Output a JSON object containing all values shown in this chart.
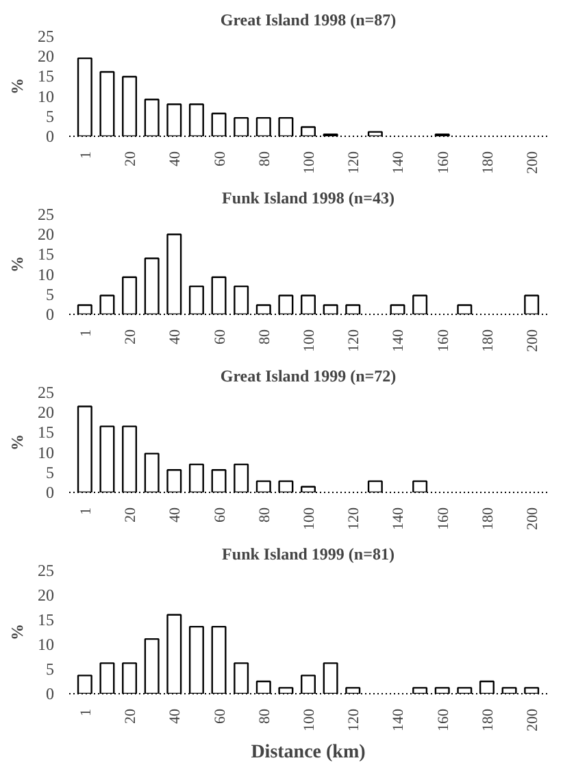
{
  "chart_data": [
    {
      "type": "bar",
      "title": "Great Island 1998 (n=87)",
      "ylabel": "%",
      "categories": [
        "1",
        null,
        "20",
        null,
        "40",
        null,
        "60",
        null,
        "80",
        null,
        "100",
        null,
        "120",
        null,
        "140",
        null,
        "160",
        null,
        "180",
        null,
        "200"
      ],
      "colors": [
        "#ffffff",
        "#ffffff",
        "#ffffff",
        "#ffffff",
        "#ffffff",
        "#ffffff",
        "#ffffff",
        "#ffffff",
        "#ffffff",
        "#ffffff",
        "#ffffff",
        "#000000",
        null,
        "#ffffff",
        null,
        null,
        "#000000",
        null,
        null,
        null,
        null
      ],
      "values": [
        19.5,
        16.1,
        14.9,
        9.2,
        8.0,
        8.0,
        5.7,
        4.6,
        4.6,
        4.6,
        2.3,
        0.5,
        null,
        1.1,
        null,
        null,
        0.5,
        null,
        null,
        null,
        null
      ],
      "ylim": [
        0,
        25
      ],
      "yticks": [
        0,
        5,
        10,
        15,
        20,
        25
      ],
      "grid": false
    },
    {
      "type": "bar",
      "title": "Funk Island 1998 (n=43)",
      "ylabel": "%",
      "categories": [
        "1",
        null,
        "20",
        null,
        "40",
        null,
        "60",
        null,
        "80",
        null,
        "100",
        null,
        "120",
        null,
        "140",
        null,
        "160",
        null,
        "180",
        null,
        "200"
      ],
      "color": "#ffffff",
      "values": [
        2.3,
        4.7,
        9.3,
        14.0,
        20.0,
        7.0,
        9.3,
        7.0,
        2.3,
        4.7,
        4.7,
        2.3,
        2.3,
        null,
        2.3,
        4.7,
        null,
        2.3,
        null,
        null,
        4.7
      ],
      "ylim": [
        0,
        25
      ],
      "yticks": [
        0,
        5,
        10,
        15,
        20,
        25
      ],
      "grid": false
    },
    {
      "type": "bar",
      "title": "Great Island 1999 (n=72)",
      "ylabel": "%",
      "categories": [
        "1",
        null,
        "20",
        null,
        "40",
        null,
        "60",
        null,
        "80",
        null,
        "100",
        null,
        "120",
        null,
        "140",
        null,
        "160",
        null,
        "180",
        null,
        "200"
      ],
      "color": "#ffffff",
      "values": [
        21.5,
        16.5,
        16.5,
        9.7,
        5.6,
        7.0,
        5.6,
        7.0,
        2.8,
        2.8,
        1.4,
        null,
        null,
        2.8,
        null,
        2.8,
        null,
        null,
        null,
        null,
        null
      ],
      "ylim": [
        0,
        25
      ],
      "yticks": [
        0,
        5,
        10,
        15,
        20,
        25
      ],
      "grid": false
    },
    {
      "type": "bar",
      "title": "Funk Island 1999 (n=81)",
      "ylabel": "%",
      "xlabel": "Distance (km)",
      "categories": [
        "1",
        null,
        "20",
        null,
        "40",
        null,
        "60",
        null,
        "80",
        null,
        "100",
        null,
        "120",
        null,
        "140",
        null,
        "160",
        null,
        "180",
        null,
        "200"
      ],
      "color": "#ffffff",
      "values": [
        3.7,
        6.2,
        6.2,
        11.1,
        16.0,
        13.6,
        13.6,
        6.2,
        2.5,
        1.2,
        3.7,
        6.2,
        1.2,
        null,
        null,
        1.2,
        1.2,
        1.2,
        2.5,
        1.2,
        1.2
      ],
      "ylim": [
        0,
        25
      ],
      "yticks": [
        0,
        5,
        10,
        15,
        20,
        25
      ],
      "grid": false
    }
  ]
}
